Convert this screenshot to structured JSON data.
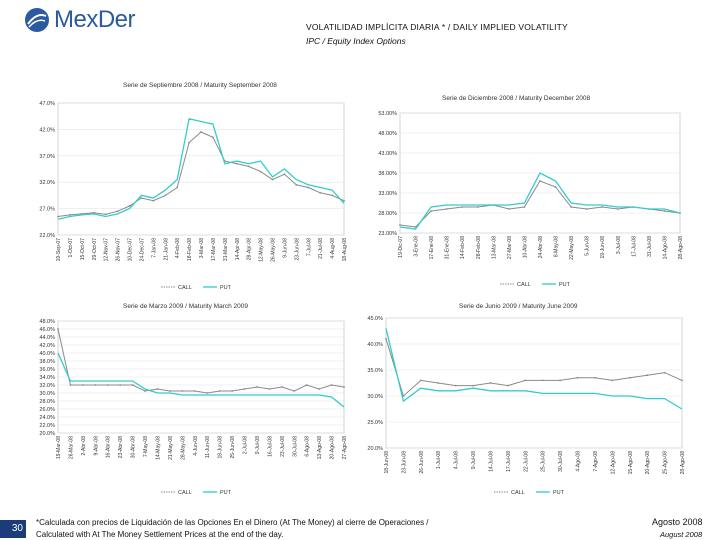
{
  "header": {
    "logo_text": "MexDer",
    "title": "VOLATILIDAD IMPLÍCITA DIARIA * / DAILY IMPLIED VOLATILITY",
    "subtitle": "IPC / Equity Index Options"
  },
  "footer": {
    "page_number": "30",
    "footnote_es": "*Calculada con precios de Liquidación de las Opciones En el Dinero (At The Money) al cierre de Operaciones /",
    "footnote_en": "Calculated with At The Money Settlement Prices at the end of the day.",
    "date_es": "Agosto 2008",
    "date_en": "August 2008"
  },
  "colors": {
    "call": "#8a8a8a",
    "put": "#33cccc"
  },
  "chart_data": [
    {
      "type": "line",
      "title": "Serie de Septiembre 2008 / Maturity September 2008",
      "y_ticks": [
        "47.0%",
        "42.0%",
        "37.0%",
        "32.0%",
        "27.0%",
        "22.0%"
      ],
      "ylim": [
        22,
        47
      ],
      "x_ticks": [
        "19-Sep-07",
        "1-Oct-07",
        "15-Oct-07",
        "29-Oct-07",
        "12-Nov-07",
        "26-Nov-07",
        "10-Dec-07",
        "24-Dec-07",
        "7-Jan-08",
        "21-Jan-08",
        "4-Feb-08",
        "18-Feb-08",
        "3-Mar-08",
        "17-Mar-08",
        "31-Mar-08",
        "14-Apr-08",
        "28-Apr-08",
        "12-May-08",
        "26-May-08",
        "9-Jun-08",
        "23-Jun-08",
        "7-Jul-08",
        "21-Jul-08",
        "4-Aug-08",
        "18-Aug-08"
      ],
      "series": [
        {
          "name": "CALL",
          "values": [
            25.5,
            25.8,
            26.0,
            26.2,
            25.9,
            26.5,
            27.5,
            29.0,
            28.5,
            29.5,
            31.0,
            39.5,
            41.5,
            40.5,
            36.0,
            35.5,
            35.0,
            34.0,
            32.5,
            33.5,
            31.5,
            31.0,
            30.0,
            29.5,
            28.5
          ]
        },
        {
          "name": "PUT",
          "values": [
            25.0,
            25.5,
            25.8,
            26.0,
            25.5,
            26.0,
            27.0,
            29.5,
            29.0,
            30.5,
            32.5,
            44.0,
            43.5,
            43.0,
            35.5,
            36.0,
            35.5,
            36.0,
            33.0,
            34.5,
            32.5,
            31.5,
            31.0,
            30.5,
            28.0
          ]
        }
      ],
      "legend": [
        "CALL",
        "PUT"
      ]
    },
    {
      "type": "line",
      "title": "Serie de Diciembre 2008 / Maturity December 2008",
      "y_ticks": [
        "53.00%",
        "48.00%",
        "43.00%",
        "38.00%",
        "33.00%",
        "28.00%",
        "23.00%"
      ],
      "ylim": [
        23,
        53
      ],
      "x_ticks": [
        "19-Dic-07",
        "3-Ene-08",
        "17-Ene-08",
        "31-Ene-08",
        "14-Feb-08",
        "28-Feb-08",
        "13-Mar-08",
        "27-Mar-08",
        "10-Abr-08",
        "24-Abr-08",
        "8-May-08",
        "22-May-08",
        "5-Jun-08",
        "19-Jun-08",
        "3-Jul-08",
        "17-Jul-08",
        "31-Jul-08",
        "14-Ago-08",
        "28-Ago-08"
      ],
      "series": [
        {
          "name": "CALL",
          "values": [
            25.0,
            24.5,
            28.5,
            29.0,
            29.5,
            29.5,
            30.0,
            29.0,
            29.5,
            36.0,
            34.5,
            29.5,
            29.0,
            29.5,
            29.0,
            29.5,
            29.0,
            28.5,
            28.0
          ]
        },
        {
          "name": "PUT",
          "values": [
            24.5,
            24.0,
            29.5,
            30.0,
            30.0,
            30.0,
            30.0,
            30.0,
            30.5,
            38.0,
            36.0,
            30.5,
            30.0,
            30.0,
            29.5,
            29.5,
            29.0,
            29.0,
            28.0
          ]
        }
      ],
      "legend": [
        "CALL",
        "PUT"
      ]
    },
    {
      "type": "line",
      "title": "Serie de Marzo 2009 / Maturity March 2009",
      "y_ticks": [
        "48.0%",
        "46.0%",
        "44.0%",
        "42.0%",
        "40.0%",
        "38.0%",
        "36.0%",
        "34.0%",
        "32.0%",
        "30.0%",
        "28.0%",
        "26.0%",
        "24.0%",
        "22.0%",
        "20.0%"
      ],
      "ylim": [
        20,
        48
      ],
      "x_ticks": [
        "19-Mar-08",
        "26-Mar-08",
        "2-Abr-08",
        "9-Abr-08",
        "16-Abr-08",
        "23-Abr-08",
        "30-Abr-08",
        "7-May-08",
        "14-May-08",
        "21-May-08",
        "28-May-08",
        "4-Jun-08",
        "11-Jun-08",
        "18-Jun-08",
        "25-Jun-08",
        "2-Jul-08",
        "9-Jul-08",
        "16-Jul-08",
        "23-Jul-08",
        "30-Jul-08",
        "6-Ago-08",
        "13-Ago-08",
        "20-Ago-08",
        "27-Ago-08"
      ],
      "series": [
        {
          "name": "CALL",
          "values": [
            46.0,
            32.0,
            32.0,
            32.0,
            32.0,
            32.0,
            32.0,
            30.5,
            31.0,
            30.5,
            30.5,
            30.5,
            30.0,
            30.5,
            30.5,
            31.0,
            31.5,
            31.0,
            31.5,
            30.5,
            32.0,
            31.0,
            32.0,
            31.5
          ]
        },
        {
          "name": "PUT",
          "values": [
            40.0,
            33.0,
            33.0,
            33.0,
            33.0,
            33.0,
            33.0,
            31.0,
            30.0,
            30.0,
            29.5,
            29.5,
            29.5,
            29.5,
            29.5,
            29.5,
            29.5,
            29.5,
            29.5,
            29.5,
            29.5,
            29.5,
            29.0,
            26.5
          ]
        }
      ],
      "legend": [
        "CALL",
        "PUT"
      ]
    },
    {
      "type": "line",
      "title": "Serie de Junio 2009 / Maturity June 2009",
      "y_ticks": [
        "45.0%",
        "40.0%",
        "35.0%",
        "30.0%",
        "25.0%",
        "20.0%"
      ],
      "ylim": [
        20,
        45
      ],
      "x_ticks": [
        "18-Jun-08",
        "23-Jun-08",
        "26-Jun-08",
        "1-Jul-08",
        "4-Jul-08",
        "9-Jul-08",
        "14-Jul-08",
        "17-Jul-08",
        "22-Jul-08",
        "25-Jul-08",
        "30-Jul-08",
        "4-Ago-08",
        "7-Ago-08",
        "12-Ago-08",
        "15-Ago-08",
        "20-Ago-08",
        "25-Ago-08",
        "28-Ago-08"
      ],
      "series": [
        {
          "name": "CALL",
          "values": [
            41.0,
            30.0,
            33.0,
            32.5,
            32.0,
            32.0,
            32.5,
            32.0,
            33.0,
            33.0,
            33.0,
            33.5,
            33.5,
            33.0,
            33.5,
            34.0,
            34.5,
            33.0
          ]
        },
        {
          "name": "PUT",
          "values": [
            43.0,
            29.0,
            31.5,
            31.0,
            31.0,
            31.5,
            31.0,
            31.0,
            31.0,
            30.5,
            30.5,
            30.5,
            30.5,
            30.0,
            30.0,
            29.5,
            29.5,
            27.5
          ]
        }
      ],
      "legend": [
        "CALL",
        "PUT"
      ]
    }
  ]
}
